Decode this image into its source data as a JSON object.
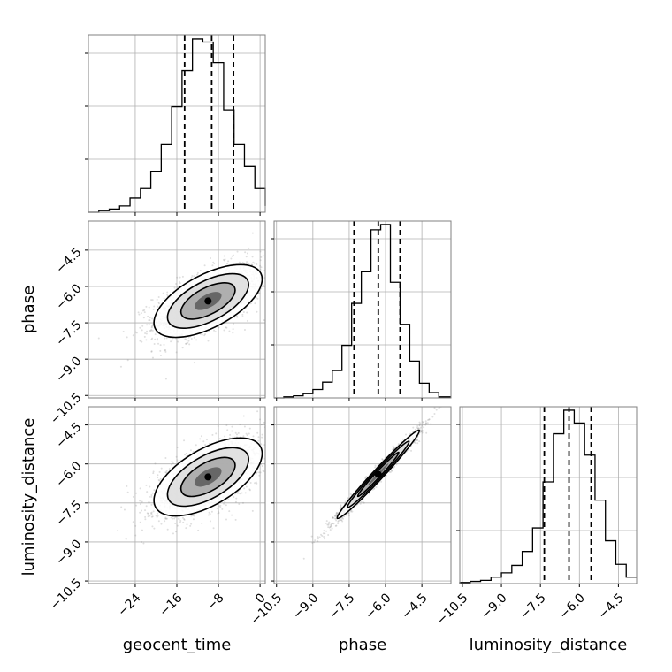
{
  "chart_data": {
    "type": "corner",
    "parameters": [
      "geocent_time",
      "phase",
      "luminosity_distance"
    ],
    "axes": {
      "geocent_time": {
        "range": [
          -33,
          1
        ],
        "ticks": [
          -24,
          -16,
          -8,
          0
        ],
        "tick_labels": [
          "−24",
          "−16",
          "−8",
          "0"
        ]
      },
      "phase": {
        "range": [
          -10.6,
          -3.3
        ],
        "ticks": [
          -10.5,
          -9.0,
          -7.5,
          -6.0,
          -4.5
        ],
        "tick_labels": [
          "−10.5",
          "−9.0",
          "−7.5",
          "−6.0",
          "−4.5"
        ]
      },
      "luminosity_distance": {
        "range": [
          -10.6,
          -3.8
        ],
        "ticks": [
          -10.5,
          -9.0,
          -7.5,
          -6.0,
          -4.5
        ],
        "tick_labels": [
          "−10.5",
          "−9.0",
          "−7.5",
          "−6.0",
          "−4.5"
        ]
      }
    },
    "marginals": [
      {
        "parameter": "geocent_time",
        "quantiles": [
          -14.5,
          -9.3,
          -5.1
        ],
        "bin_edges": [
          -33,
          -31,
          -29,
          -27,
          -25,
          -23,
          -21,
          -19,
          -17,
          -15,
          -13,
          -11,
          -9,
          -7,
          -5,
          -3,
          -1,
          1
        ],
        "counts": [
          0,
          1,
          2,
          4,
          9,
          15,
          26,
          43,
          67,
          90,
          110,
          108,
          95,
          65,
          43,
          29,
          15,
          4
        ]
      },
      {
        "parameter": "phase",
        "quantiles": [
          -7.3,
          -6.3,
          -5.4
        ],
        "bin_edges": [
          -10.6,
          -10.2,
          -9.8,
          -9.4,
          -9.0,
          -8.6,
          -8.2,
          -7.8,
          -7.4,
          -7.0,
          -6.6,
          -6.2,
          -5.8,
          -5.4,
          -5.0,
          -4.6,
          -4.2,
          -3.8,
          -3.3
        ],
        "counts": [
          0,
          1,
          2,
          4,
          8,
          15,
          26,
          50,
          90,
          120,
          160,
          165,
          110,
          70,
          35,
          14,
          5,
          1
        ]
      },
      {
        "parameter": "luminosity_distance",
        "quantiles": [
          -7.35,
          -6.4,
          -5.55
        ],
        "bin_edges": [
          -10.6,
          -10.2,
          -9.8,
          -9.4,
          -9.0,
          -8.6,
          -8.2,
          -7.8,
          -7.4,
          -7.0,
          -6.6,
          -6.2,
          -5.8,
          -5.4,
          -5.0,
          -4.6,
          -4.2,
          -3.8
        ],
        "counts": [
          1,
          2,
          3,
          6,
          10,
          17,
          30,
          52,
          95,
          140,
          162,
          150,
          120,
          78,
          40,
          18,
          6
        ]
      }
    ],
    "joint": [
      {
        "x": "geocent_time",
        "y": "phase",
        "mean": [
          -10,
          -6.6
        ],
        "sd": [
          5.2,
          0.75
        ],
        "correlation": 0.6,
        "n_points": 1800
      },
      {
        "x": "geocent_time",
        "y": "luminosity_distance",
        "mean": [
          -10,
          -6.5
        ],
        "sd": [
          5.2,
          0.75
        ],
        "correlation": 0.6,
        "n_points": 1800
      },
      {
        "x": "phase",
        "y": "luminosity_distance",
        "mean": [
          -6.3,
          -6.4
        ],
        "sd": [
          0.85,
          0.85
        ],
        "correlation": 0.985,
        "n_points": 1800
      }
    ],
    "contour_levels_sigma": [
      0.5,
      1.0,
      1.5,
      2.0
    ],
    "colors": {
      "hist": "#000000",
      "points": "#7f7f7f",
      "grid": "#b0b0b0",
      "frame": "#808080"
    }
  },
  "labels": {
    "x": [
      "geocent_time",
      "phase",
      "luminosity_distance"
    ],
    "y": [
      "phase",
      "luminosity_distance"
    ]
  }
}
